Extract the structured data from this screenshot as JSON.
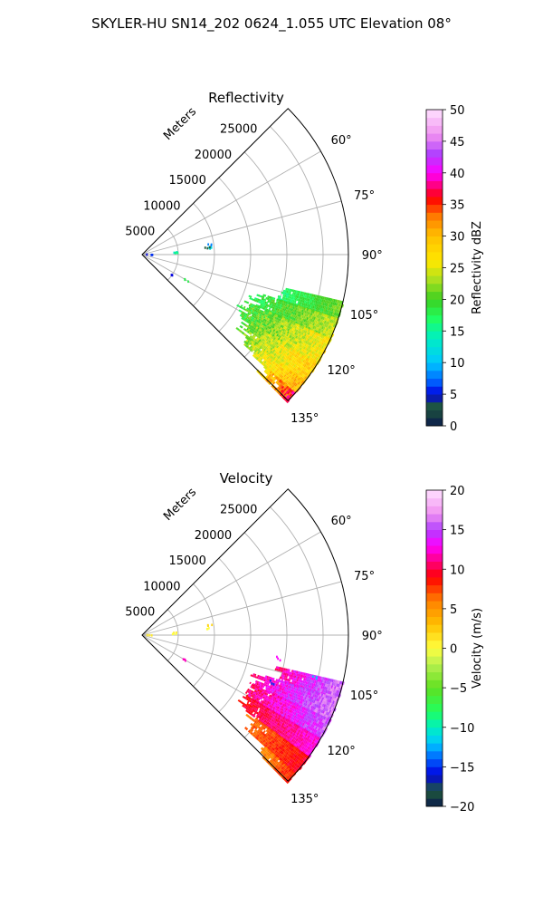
{
  "figure": {
    "suptitle": "SKYLER-HU  SN14_202  0624_1.055 UTC Elevation 08°"
  },
  "chart_data": [
    {
      "type": "heatmap",
      "projection": "polar-sector",
      "title": "Reflectivity",
      "range_label": "Meters",
      "range_ticks": [
        5000,
        10000,
        15000,
        20000,
        25000
      ],
      "range_max": 28500,
      "theta_min_deg": 45,
      "theta_max_deg": 135,
      "theta_ticks": [
        60,
        75,
        90,
        105,
        120,
        135
      ],
      "grid": true,
      "colorbar": {
        "label": "Reflectivity dBZ",
        "min": 0,
        "max": 50,
        "ticks": [
          0,
          5,
          10,
          15,
          20,
          25,
          30,
          35,
          40,
          45,
          50
        ],
        "stops": [
          {
            "v": 0,
            "color": "#0b1a4d"
          },
          {
            "v": 3,
            "color": "#1f5a3a"
          },
          {
            "v": 5,
            "color": "#0000e0"
          },
          {
            "v": 7,
            "color": "#0060ff"
          },
          {
            "v": 10,
            "color": "#00c8ff"
          },
          {
            "v": 14,
            "color": "#00f0c0"
          },
          {
            "v": 17,
            "color": "#20ff60"
          },
          {
            "v": 20,
            "color": "#3cd020"
          },
          {
            "v": 23,
            "color": "#a8e020"
          },
          {
            "v": 26,
            "color": "#ffe800"
          },
          {
            "v": 30,
            "color": "#ffc000"
          },
          {
            "v": 33,
            "color": "#ff8000"
          },
          {
            "v": 36,
            "color": "#ff0000"
          },
          {
            "v": 38,
            "color": "#ff0080"
          },
          {
            "v": 40,
            "color": "#ff00ff"
          },
          {
            "v": 43,
            "color": "#b040ff"
          },
          {
            "v": 46,
            "color": "#f090f0"
          },
          {
            "v": 50,
            "color": "#ffe0ff"
          }
        ]
      },
      "regions": [
        {
          "theta": [
            103,
            108
          ],
          "range": [
            20000,
            28500
          ],
          "value": 19,
          "spread": 3
        },
        {
          "theta": [
            108,
            114
          ],
          "range": [
            17000,
            28500
          ],
          "value": 21,
          "spread": 4
        },
        {
          "theta": [
            114,
            122
          ],
          "range": [
            16000,
            28500
          ],
          "value": 23,
          "spread": 5
        },
        {
          "theta": [
            122,
            128
          ],
          "range": [
            17500,
            28500
          ],
          "value": 25,
          "spread": 5
        },
        {
          "theta": [
            128,
            132
          ],
          "range": [
            19500,
            28500
          ],
          "value": 27,
          "spread": 5
        },
        {
          "theta": [
            132,
            135
          ],
          "range": [
            23000,
            28500
          ],
          "value": 32,
          "spread": 6
        }
      ],
      "specks": [
        {
          "theta": 82,
          "range": 9500,
          "value": 8
        },
        {
          "theta": 85,
          "range": 9500,
          "value": 12
        },
        {
          "theta": 87,
          "range": 4500,
          "value": 13
        },
        {
          "theta": 88,
          "range": 4500,
          "value": 16
        },
        {
          "theta": 84,
          "range": 9000,
          "value": 3
        },
        {
          "theta": 92,
          "range": 1000,
          "value": 5
        },
        {
          "theta": 93,
          "range": 1300,
          "value": 6
        },
        {
          "theta": 120,
          "range": 7000,
          "value": 18
        },
        {
          "theta": 125,
          "range": 5000,
          "value": 5
        }
      ]
    },
    {
      "type": "heatmap",
      "projection": "polar-sector",
      "title": "Velocity",
      "range_label": "Meters",
      "range_ticks": [
        5000,
        10000,
        15000,
        20000,
        25000
      ],
      "range_max": 28500,
      "theta_min_deg": 45,
      "theta_max_deg": 135,
      "theta_ticks": [
        60,
        75,
        90,
        105,
        120,
        135
      ],
      "grid": true,
      "colorbar": {
        "label": "Velocity (m/s)",
        "min": -20,
        "max": 20,
        "ticks": [
          -20,
          -15,
          -10,
          -5,
          0,
          5,
          10,
          15,
          20
        ],
        "stops": [
          {
            "v": -20,
            "color": "#0b1a4d"
          },
          {
            "v": -18,
            "color": "#1f5a3a"
          },
          {
            "v": -16,
            "color": "#0000e0"
          },
          {
            "v": -14,
            "color": "#0060ff"
          },
          {
            "v": -12,
            "color": "#00c8ff"
          },
          {
            "v": -10,
            "color": "#00f0c0"
          },
          {
            "v": -8,
            "color": "#20ff60"
          },
          {
            "v": -5,
            "color": "#60e020"
          },
          {
            "v": -2,
            "color": "#b8f050"
          },
          {
            "v": 0,
            "color": "#ffff40"
          },
          {
            "v": 3,
            "color": "#ffc000"
          },
          {
            "v": 6,
            "color": "#ff8000"
          },
          {
            "v": 9,
            "color": "#ff0000"
          },
          {
            "v": 11,
            "color": "#ff0080"
          },
          {
            "v": 13,
            "color": "#ff00ff"
          },
          {
            "v": 15,
            "color": "#b040ff"
          },
          {
            "v": 17,
            "color": "#f090f0"
          },
          {
            "v": 20,
            "color": "#ffe0ff"
          }
        ]
      },
      "regions": [
        {
          "theta": [
            103,
            108
          ],
          "range": [
            20000,
            28500
          ],
          "value": 14,
          "spread": 3
        },
        {
          "theta": [
            108,
            114
          ],
          "range": [
            17000,
            28500
          ],
          "value": 14,
          "spread": 3
        },
        {
          "theta": [
            114,
            120
          ],
          "range": [
            16500,
            28500
          ],
          "value": 13,
          "spread": 3
        },
        {
          "theta": [
            120,
            126
          ],
          "range": [
            17000,
            28500
          ],
          "value": 11,
          "spread": 2
        },
        {
          "theta": [
            126,
            132
          ],
          "range": [
            19000,
            28500
          ],
          "value": 8,
          "spread": 2
        },
        {
          "theta": [
            132,
            135
          ],
          "range": [
            23000,
            28500
          ],
          "value": 7,
          "spread": 2
        }
      ],
      "specks": [
        {
          "theta": 82,
          "range": 9500,
          "value": 2
        },
        {
          "theta": 85,
          "range": 9000,
          "value": 0
        },
        {
          "theta": 87,
          "range": 4500,
          "value": 1
        },
        {
          "theta": 88,
          "range": 4500,
          "value": 0
        },
        {
          "theta": 92,
          "range": 1000,
          "value": 1
        },
        {
          "theta": 100,
          "range": 19000,
          "value": 13
        },
        {
          "theta": 104,
          "range": 24500,
          "value": -12
        },
        {
          "theta": 110,
          "range": 19000,
          "value": -15
        },
        {
          "theta": 120,
          "range": 7000,
          "value": 12
        }
      ]
    }
  ]
}
